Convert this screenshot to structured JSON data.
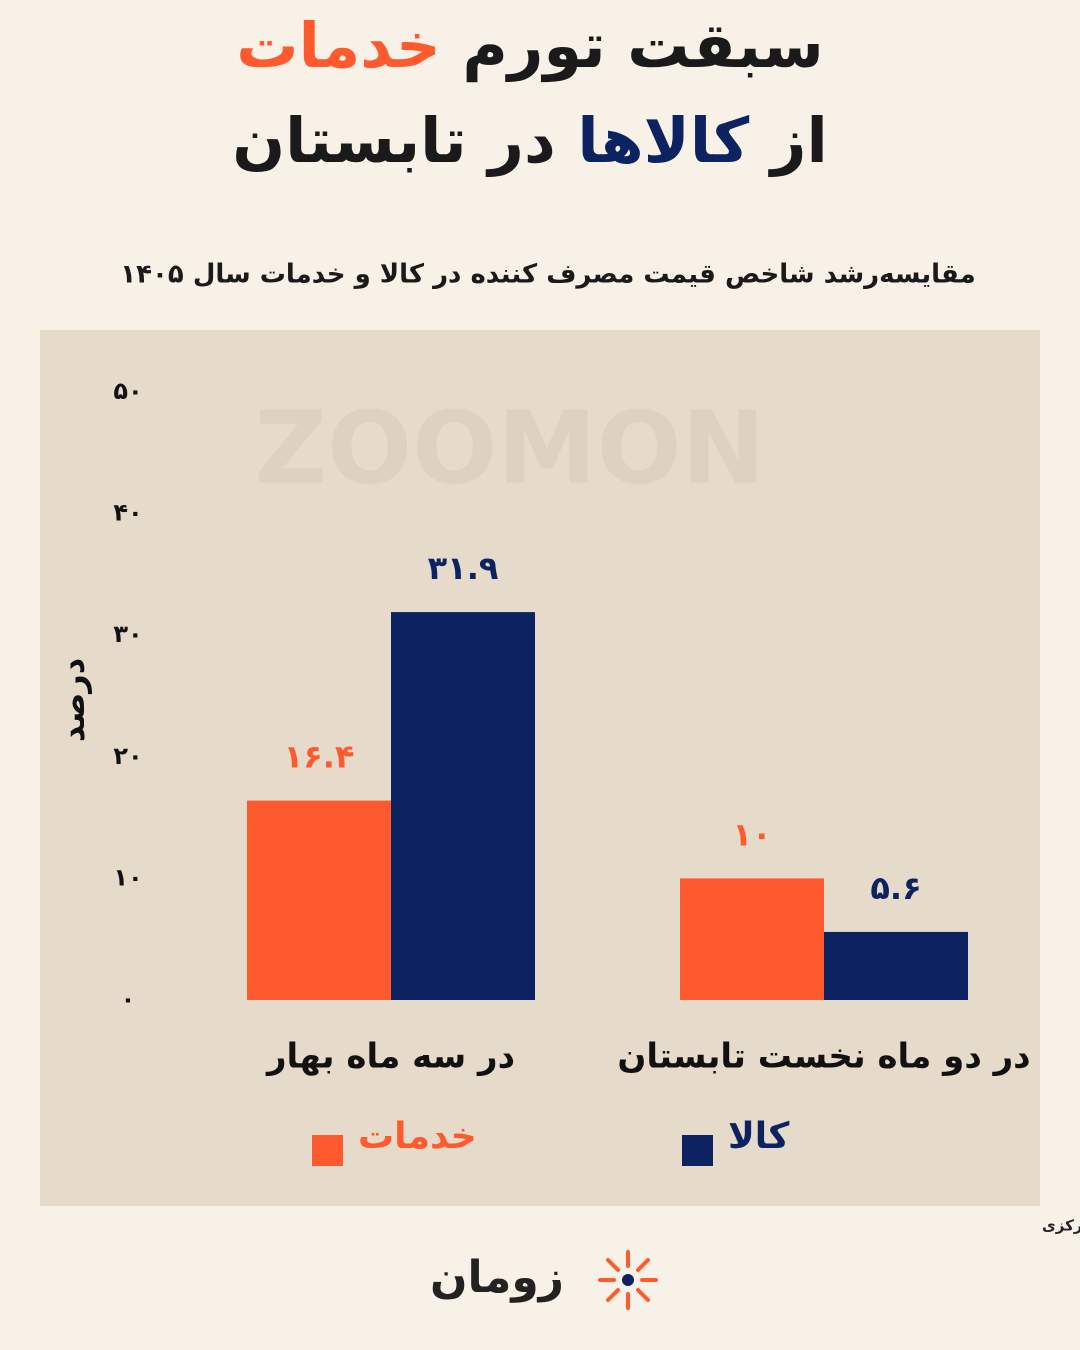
{
  "chart_data": {
    "type": "bar",
    "title_lines": [
      [
        {
          "text": "سبقت تورم",
          "color": "#1a1a1a"
        },
        {
          "text": "خدمات",
          "color": "#FF5A2E"
        }
      ],
      [
        {
          "text": "از",
          "color": "#1a1a1a"
        },
        {
          "text": "کالاها",
          "color": "#0D2260"
        },
        {
          "text": "در تابستان",
          "color": "#1a1a1a"
        }
      ]
    ],
    "subtitle": "مقایسه‌رشد شاخص قیمت مصرف کننده در کالا و خدمات سال ۱۴۰۵",
    "y_label": "درصد",
    "categories": [
      "در سه ماه بهار",
      "در دو ماه نخست تابستان"
    ],
    "series": [
      {
        "name": "خدمات",
        "color": "#FF5A2E",
        "values": [
          16.4,
          10
        ],
        "value_labels": [
          "۱۶.۴",
          "۱۰"
        ]
      },
      {
        "name": "کالا",
        "color": "#0D2260",
        "values": [
          31.9,
          5.6
        ],
        "value_labels": [
          "۳۱.۹",
          "۵.۶"
        ]
      }
    ],
    "ylim": [
      0,
      50
    ],
    "yticks": [
      {
        "value": 0,
        "label": "۰"
      },
      {
        "value": 10,
        "label": "۱۰"
      },
      {
        "value": 20,
        "label": "۲۰"
      },
      {
        "value": 30,
        "label": "۳۰"
      },
      {
        "value": 40,
        "label": "۴۰"
      },
      {
        "value": 50,
        "label": "۵۰"
      }
    ],
    "grid": false,
    "watermark": "ZOOMON",
    "source": "منبع داده: بانک مرکزی",
    "brand": "زومان"
  }
}
